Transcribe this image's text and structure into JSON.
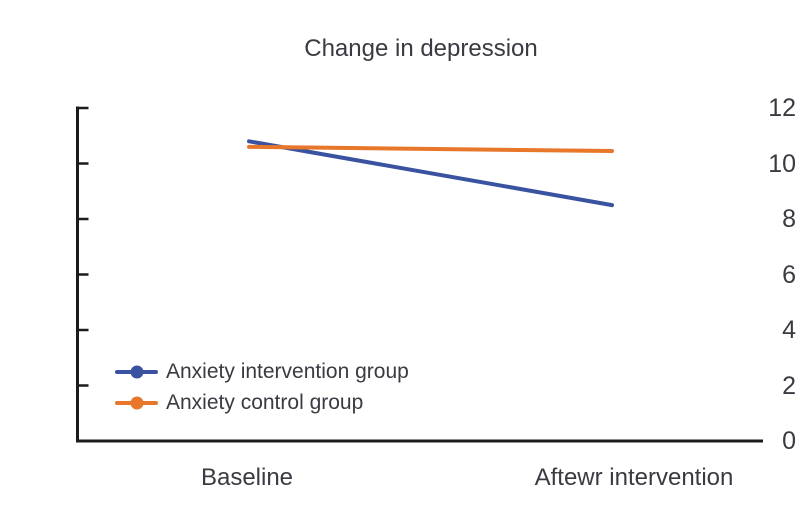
{
  "chart_data": {
    "type": "line",
    "title": "Change in depression",
    "categories": [
      "Baseline",
      "Aftewr intervention"
    ],
    "series": [
      {
        "name": "Anxiety intervention group",
        "color": "#3a53a0",
        "values": [
          10.8,
          8.5
        ]
      },
      {
        "name": "Anxiety control group",
        "color": "#e8762b",
        "values": [
          10.6,
          10.45
        ]
      }
    ],
    "xlabel": "",
    "ylabel": "",
    "ylim": [
      0,
      12
    ],
    "yticks": [
      0,
      2,
      4,
      6,
      8,
      10,
      12
    ],
    "grid": false,
    "legend_position": "inside-lower-left",
    "axis_color": "#1b1b1b",
    "text_color": "#3b3a42",
    "background_color": "#ffffff"
  }
}
